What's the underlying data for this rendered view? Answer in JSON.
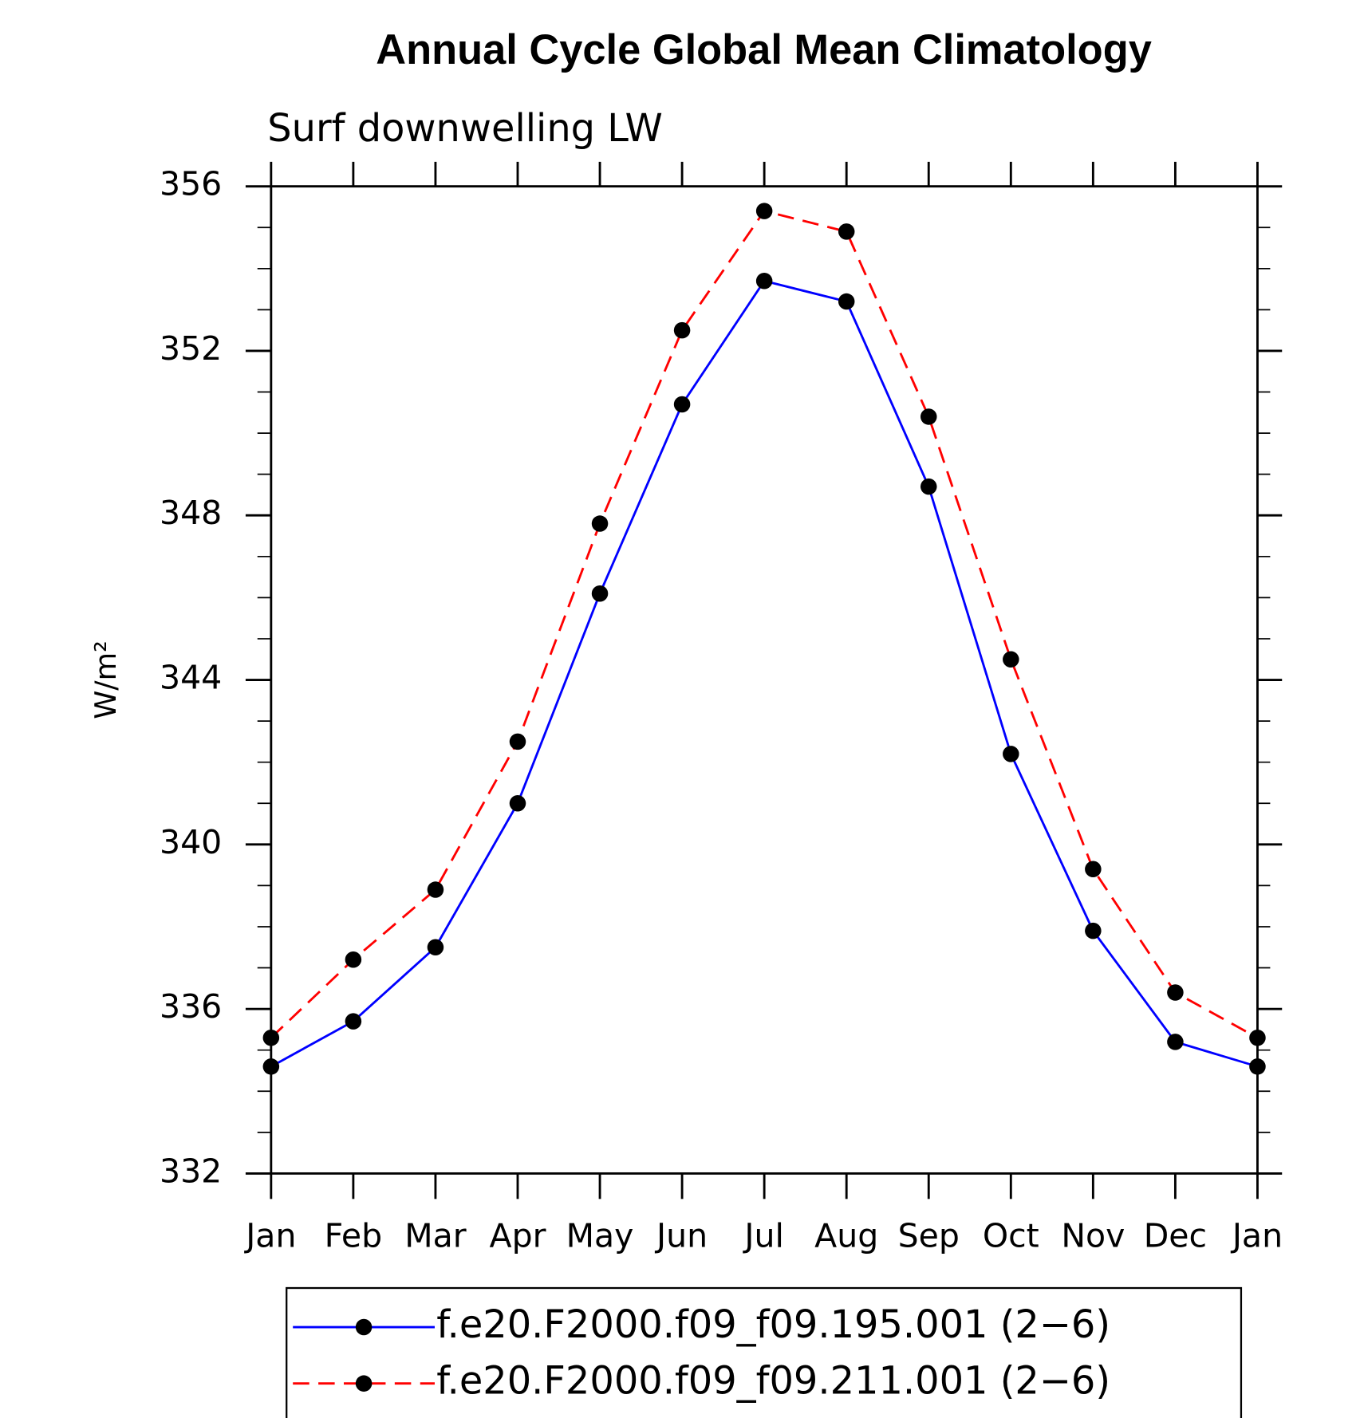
{
  "chart_data": {
    "type": "line",
    "title": "Annual Cycle Global Mean Climatology",
    "subtitle": "Surf downwelling LW",
    "ylabel": "W/m²",
    "categories": [
      "Jan",
      "Feb",
      "Mar",
      "Apr",
      "May",
      "Jun",
      "Jul",
      "Aug",
      "Sep",
      "Oct",
      "Nov",
      "Dec",
      "Jan"
    ],
    "series": [
      {
        "name": "f.e20.F2000.f09_f09.195.001 (2−6)",
        "color": "#0000ff",
        "dash": "solid",
        "values": [
          334.6,
          335.7,
          337.5,
          341.0,
          346.1,
          350.7,
          353.7,
          353.2,
          348.7,
          342.2,
          337.9,
          335.2,
          334.6
        ]
      },
      {
        "name": "f.e20.F2000.f09_f09.211.001 (2−6)",
        "color": "#ff0000",
        "dash": "dashed",
        "values": [
          335.3,
          337.2,
          338.9,
          342.5,
          347.8,
          352.5,
          355.4,
          354.9,
          350.4,
          344.5,
          339.4,
          336.4,
          335.3
        ]
      }
    ],
    "ylim": [
      332,
      356
    ],
    "yticks": [
      332,
      336,
      340,
      344,
      348,
      352,
      356
    ]
  }
}
